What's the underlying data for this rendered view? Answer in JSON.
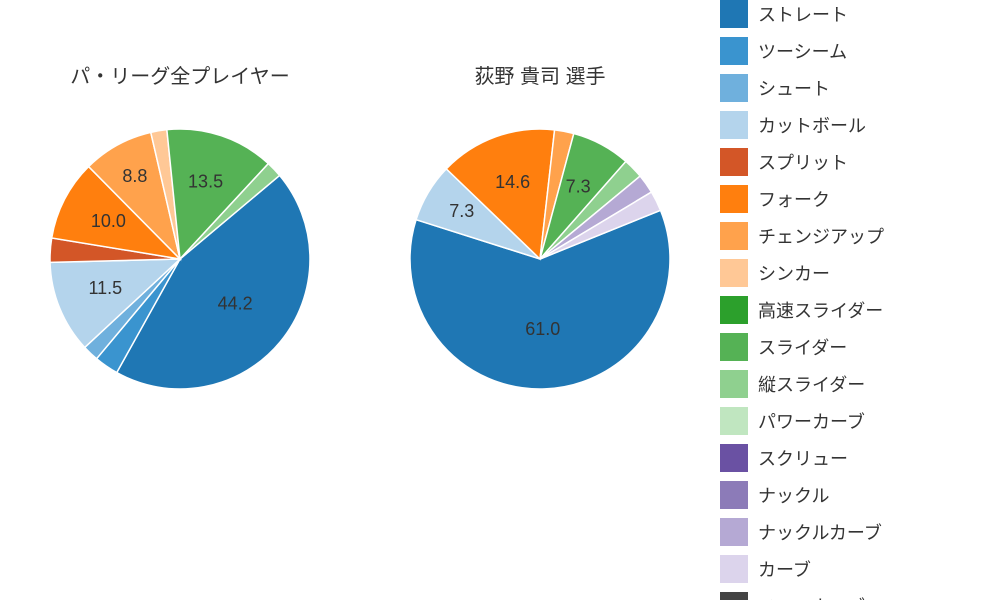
{
  "background_color": "#ffffff",
  "text_color": "#333333",
  "title_fontsize": 20,
  "label_fontsize": 18,
  "legend_fontsize": 18,
  "legend": [
    {
      "label": "ストレート",
      "color": "#1f77b4"
    },
    {
      "label": "ツーシーム",
      "color": "#3a94cf"
    },
    {
      "label": "シュート",
      "color": "#6fb0dd"
    },
    {
      "label": "カットボール",
      "color": "#b4d4ec"
    },
    {
      "label": "スプリット",
      "color": "#d35627"
    },
    {
      "label": "フォーク",
      "color": "#ff7f0e"
    },
    {
      "label": "チェンジアップ",
      "color": "#ffa24c"
    },
    {
      "label": "シンカー",
      "color": "#ffc896"
    },
    {
      "label": "高速スライダー",
      "color": "#2ca02c"
    },
    {
      "label": "スライダー",
      "color": "#55b255"
    },
    {
      "label": "縦スライダー",
      "color": "#8fd08f"
    },
    {
      "label": "パワーカーブ",
      "color": "#c0e6c0"
    },
    {
      "label": "スクリュー",
      "color": "#6a51a3"
    },
    {
      "label": "ナックル",
      "color": "#8c7bb8"
    },
    {
      "label": "ナックルカーブ",
      "color": "#b5a9d4"
    },
    {
      "label": "カーブ",
      "color": "#dcd4ec"
    },
    {
      "label": "スローカーブ",
      "color": "#444444"
    }
  ],
  "charts": [
    {
      "title": "パ・リーグ全プレイヤー",
      "radius": 130,
      "start_angle_deg": 50,
      "slices": [
        {
          "value": 44.2,
          "color": "#1f77b4",
          "label": "44.2",
          "show_label": true,
          "label_r": 0.55
        },
        {
          "value": 3.0,
          "color": "#3a94cf",
          "label": "",
          "show_label": false
        },
        {
          "value": 2.0,
          "color": "#6fb0dd",
          "label": "",
          "show_label": false
        },
        {
          "value": 11.5,
          "color": "#b4d4ec",
          "label": "11.5",
          "show_label": true,
          "label_r": 0.62
        },
        {
          "value": 3.0,
          "color": "#d35627",
          "label": "",
          "show_label": false
        },
        {
          "value": 10.0,
          "color": "#ff7f0e",
          "label": "10.0",
          "show_label": true,
          "label_r": 0.62
        },
        {
          "value": 8.8,
          "color": "#ffa24c",
          "label": "8.8",
          "show_label": true,
          "label_r": 0.72
        },
        {
          "value": 2.0,
          "color": "#ffc896",
          "label": "",
          "show_label": false
        },
        {
          "value": 13.5,
          "color": "#55b255",
          "label": "13.5",
          "show_label": true,
          "label_r": 0.62
        },
        {
          "value": 2.0,
          "color": "#8fd08f",
          "label": "",
          "show_label": false
        }
      ]
    },
    {
      "title": "荻野 貴司  選手",
      "radius": 130,
      "start_angle_deg": 68,
      "slices": [
        {
          "value": 61.0,
          "color": "#1f77b4",
          "label": "61.0",
          "show_label": true,
          "label_r": 0.55
        },
        {
          "value": 7.3,
          "color": "#b4d4ec",
          "label": "7.3",
          "show_label": true,
          "label_r": 0.7
        },
        {
          "value": 14.6,
          "color": "#ff7f0e",
          "label": "14.6",
          "show_label": true,
          "label_r": 0.62
        },
        {
          "value": 2.4,
          "color": "#ffa24c",
          "label": "",
          "show_label": false
        },
        {
          "value": 7.3,
          "color": "#55b255",
          "label": "7.3",
          "show_label": true,
          "label_r": 0.62
        },
        {
          "value": 2.5,
          "color": "#8fd08f",
          "label": "",
          "show_label": false
        },
        {
          "value": 2.4,
          "color": "#b5a9d4",
          "label": "",
          "show_label": false
        },
        {
          "value": 2.5,
          "color": "#dcd4ec",
          "label": "",
          "show_label": false
        }
      ]
    }
  ]
}
